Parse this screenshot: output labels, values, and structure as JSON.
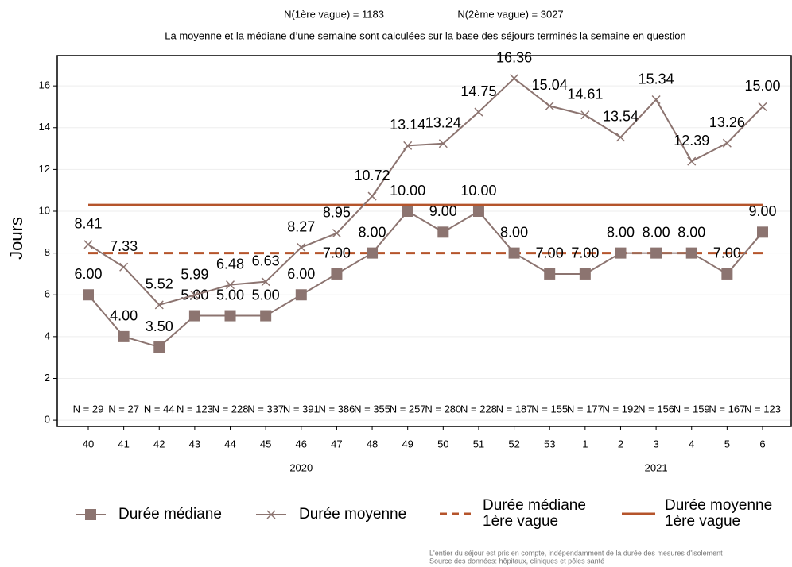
{
  "chart_data": {
    "type": "line",
    "header_notes": [
      "N(1ère vague) = 1183",
      "N(2ème vague) = 3027"
    ],
    "subtitle": "La moyenne et la médiane d’une semaine sont calculées sur la base des séjours terminés la semaine en question",
    "y_label": "Jours",
    "categories": [
      "40",
      "41",
      "42",
      "43",
      "44",
      "45",
      "46",
      "47",
      "48",
      "49",
      "50",
      "51",
      "52",
      "53",
      "1",
      "2",
      "3",
      "4",
      "5",
      "6"
    ],
    "year_labels": [
      {
        "label": "2020",
        "category": "46"
      },
      {
        "label": "2021",
        "category": "3"
      }
    ],
    "n_labels": [
      "N = 29",
      "N = 27",
      "N = 44",
      "N = 123",
      "N = 228",
      "N = 337",
      "N = 391",
      "N = 386",
      "N = 355",
      "N = 257",
      "N = 280",
      "N = 228",
      "N = 187",
      "N = 155",
      "N = 177",
      "N = 192",
      "N = 156",
      "N = 159",
      "N = 167",
      "N = 123"
    ],
    "series": [
      {
        "name": "Durée médiane",
        "color": "#8c7470",
        "marker": "square",
        "values": [
          6,
          4,
          3.5,
          5,
          5,
          5,
          6,
          7,
          8,
          10,
          9,
          10,
          8,
          7,
          7,
          8,
          8,
          8,
          7,
          9
        ],
        "value_labels": [
          "6.00",
          "4.00",
          "3.50",
          "5.00",
          "5.00",
          "5.00",
          "6.00",
          "7.00",
          "8.00",
          "10.00",
          "9.00",
          "10.00",
          "8.00",
          "7.00",
          "7.00",
          "8.00",
          "8.00",
          "8.00",
          "7.00",
          "9.00"
        ]
      },
      {
        "name": "Durée moyenne",
        "color": "#8c7470",
        "marker": "x",
        "values": [
          8.41,
          7.33,
          5.52,
          5.99,
          6.48,
          6.63,
          8.27,
          8.95,
          10.72,
          13.14,
          13.24,
          14.75,
          16.36,
          15.04,
          14.61,
          13.54,
          15.34,
          12.39,
          13.26,
          15
        ],
        "value_labels": [
          "8.41",
          "7.33",
          "5.52",
          "5.99",
          "6.48",
          "6.63",
          "8.27",
          "8.95",
          "10.72",
          "13.14",
          "13.24",
          "14.75",
          "16.36",
          "15.04",
          "14.61",
          "13.54",
          "15.34",
          "12.39",
          "13.26",
          "15.00"
        ]
      }
    ],
    "reference_lines": [
      {
        "name": "Durée médiane 1ère vague",
        "value": 8,
        "color": "#b5542b",
        "style": "dashed"
      },
      {
        "name": "Durée moyenne 1ère vague",
        "value": 10.3,
        "color": "#b5542b",
        "style": "solid"
      }
    ],
    "ylim": [
      -0.3,
      17.45
    ],
    "yticks": [
      0,
      2,
      4,
      6,
      8,
      10,
      12,
      14,
      16
    ],
    "grid": true,
    "footnotes": [
      "L'entier du séjour est pris en compte, indépendamment de la durée des mesures d'isolement",
      "Source des données: hôpitaux, cliniques et pôles santé"
    ]
  }
}
